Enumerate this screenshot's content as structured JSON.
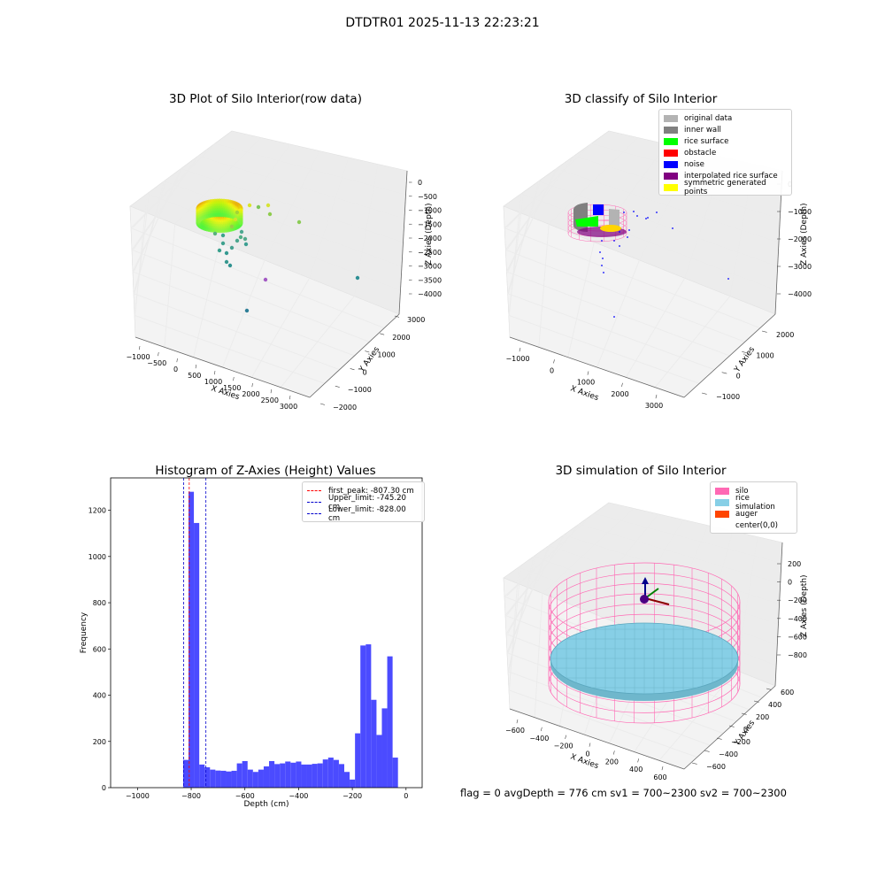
{
  "suptitle": "DTDTR01 2025-11-13 22:23:21",
  "colors": {
    "hist_bar": "#4b4bff",
    "first_peak": "#ff0000",
    "limits": "#0000cc",
    "silo": "#ff69b4",
    "rice": "#87cfe6",
    "auger": "#ff4500",
    "grid": "#ebebeb"
  },
  "panel1": {
    "title": "3D Plot of Silo Interior(row data)",
    "x_label": "X Axies",
    "y_label": "Y Axies",
    "z_label": "Z Axies (Depth)",
    "x_ticks": [
      "−1000",
      "−500",
      "0",
      "500",
      "1000",
      "1500",
      "2000",
      "2500",
      "3000"
    ],
    "y_ticks": [
      "−2000",
      "−1000",
      "0",
      "1000",
      "2000",
      "3000"
    ],
    "z_ticks": [
      "0",
      "−500",
      "−1000",
      "−1500",
      "−2000",
      "−2500",
      "−3000",
      "−3500",
      "−4000"
    ]
  },
  "panel2": {
    "title": "3D classify of Silo Interior",
    "x_label": "X Axies",
    "y_label": "Y Axies",
    "z_label": "Z Axies (Depth)",
    "x_ticks": [
      "−1000",
      "0",
      "1000",
      "2000",
      "3000"
    ],
    "y_ticks": [
      "−1000",
      "0",
      "1000",
      "2000"
    ],
    "z_ticks": [
      "0",
      "−1000",
      "−2000",
      "−3000",
      "−4000"
    ],
    "legend": [
      {
        "label": "original data",
        "color": "#b3b3b3"
      },
      {
        "label": "inner wall",
        "color": "#808080"
      },
      {
        "label": "rice surface",
        "color": "#00ff00"
      },
      {
        "label": "obstacle",
        "color": "#ff0000"
      },
      {
        "label": "noise",
        "color": "#0000ff"
      },
      {
        "label": "interpolated rice surface",
        "color": "#800080"
      },
      {
        "label": "symmetric generated points",
        "color": "#ffff00"
      }
    ]
  },
  "panel4": {
    "title": "3D simulation of Silo Interior",
    "x_label": "X Axies",
    "y_label": "Y Axies",
    "z_label": "Z Axies (Depth)",
    "x_ticks": [
      "−600",
      "−400",
      "−200",
      "0",
      "200",
      "400",
      "600"
    ],
    "y_ticks": [
      "−600",
      "−400",
      "−200",
      "0",
      "200",
      "400",
      "600"
    ],
    "z_ticks": [
      "200",
      "0",
      "−200",
      "−400",
      "−600",
      "−800"
    ],
    "legend": [
      {
        "label": "silo",
        "color": "#ff69b4"
      },
      {
        "label": "rice simulation",
        "color": "#87cfe6"
      },
      {
        "label": "auger",
        "color": "#ff4500"
      },
      {
        "label": "center(0,0)",
        "color": ""
      }
    ]
  },
  "footer": "flag = 0     avgDepth = 776 cm  sv1 = 700~2300  sv2 = 700~2300",
  "chart_data": [
    {
      "type": "scatter",
      "title": "3D Plot of Silo Interior(row data)",
      "xlabel": "X Axies",
      "ylabel": "Y Axies",
      "zlabel": "Z Axies (Depth)",
      "xlim": [
        -1200,
        3200
      ],
      "ylim": [
        -2000,
        3200
      ],
      "zlim": [
        -4200,
        200
      ],
      "grid": true
    },
    {
      "type": "scatter",
      "title": "3D classify of Silo Interior",
      "xlabel": "X Axies",
      "ylabel": "Y Axies",
      "zlabel": "Z Axies (Depth)",
      "series": [
        {
          "name": "original data"
        },
        {
          "name": "inner wall"
        },
        {
          "name": "rice surface"
        },
        {
          "name": "obstacle"
        },
        {
          "name": "noise"
        },
        {
          "name": "interpolated rice surface"
        },
        {
          "name": "symmetric generated points"
        }
      ],
      "legend_position": "top-right",
      "grid": true
    },
    {
      "type": "bar",
      "title": "Histogram of Z-Axies (Height) Values",
      "xlabel": "Depth (cm)",
      "ylabel": "Frequency",
      "xlim": [
        -1100,
        60
      ],
      "ylim": [
        0,
        1340
      ],
      "x_ticks": [
        "−1000",
        "−800",
        "−600",
        "−400",
        "−200",
        "0"
      ],
      "y_ticks": [
        "0",
        "200",
        "400",
        "600",
        "800",
        "1000",
        "1200"
      ],
      "bin_width": 20,
      "bin_start": -830,
      "values": [
        120,
        1280,
        1145,
        100,
        88,
        78,
        74,
        73,
        70,
        73,
        105,
        115,
        78,
        68,
        78,
        92,
        115,
        102,
        105,
        113,
        108,
        113,
        100,
        100,
        103,
        105,
        122,
        130,
        120,
        102,
        68,
        35,
        235,
        615,
        620,
        380,
        228,
        343,
        568,
        130
      ],
      "lines": [
        {
          "name": "first_peak: -807.30 cm",
          "x": -807.3,
          "color": "#ff0000"
        },
        {
          "name": "Upper_limit: -745.20 cm",
          "x": -745.2,
          "color": "#0000cc"
        },
        {
          "name": "Lower_limit: -828.00 cm",
          "x": -828.0,
          "color": "#0000cc"
        }
      ],
      "legend_position": "upper right",
      "grid": false
    },
    {
      "type": "scatter",
      "title": "3D simulation of Silo Interior",
      "xlabel": "X Axies",
      "ylabel": "Y Axies",
      "zlabel": "Z Axies (Depth)",
      "xlim": [
        -700,
        700
      ],
      "ylim": [
        -700,
        700
      ],
      "zlim": [
        -900,
        300
      ],
      "series": [
        {
          "name": "silo"
        },
        {
          "name": "rice simulation"
        },
        {
          "name": "auger"
        },
        {
          "name": "center(0,0)"
        }
      ],
      "legend_position": "top-right",
      "grid": true
    }
  ]
}
